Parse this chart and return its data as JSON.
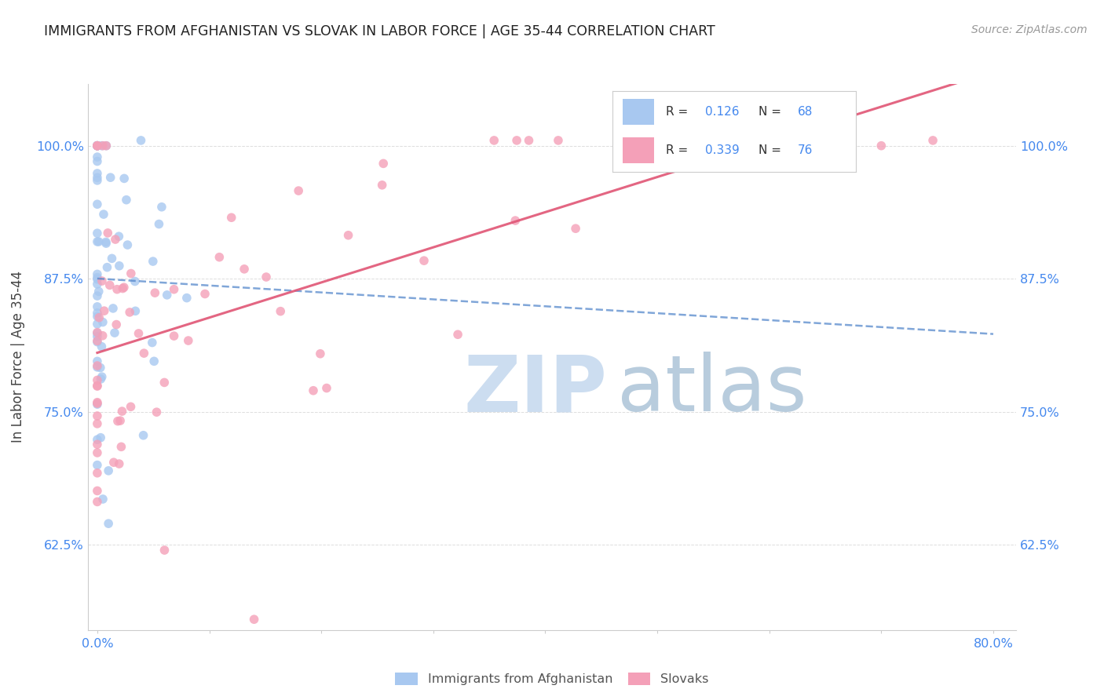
{
  "title": "IMMIGRANTS FROM AFGHANISTAN VS SLOVAK IN LABOR FORCE | AGE 35-44 CORRELATION CHART",
  "source": "Source: ZipAtlas.com",
  "ylabel": "In Labor Force | Age 35-44",
  "ytick_labels": [
    "62.5%",
    "75.0%",
    "87.5%",
    "100.0%"
  ],
  "ytick_values": [
    0.625,
    0.75,
    0.875,
    1.0
  ],
  "xlim": [
    0.0,
    0.8
  ],
  "ylim": [
    0.545,
    1.055
  ],
  "legend_r1": "0.126",
  "legend_n1": "68",
  "legend_r2": "0.339",
  "legend_n2": "76",
  "color_afghan": "#a8c8f0",
  "color_slovak": "#f4a0b8",
  "color_line_afghan": "#5588cc",
  "color_line_slovak": "#e05575",
  "color_ticks": "#4488ee",
  "background": "#ffffff",
  "grid_color": "#dddddd",
  "title_color": "#222222",
  "source_color": "#999999",
  "label_color": "#444444",
  "legend_border": "#cccccc",
  "watermark_zip_color": "#ccddf0",
  "watermark_atlas_color": "#b8ccdd"
}
